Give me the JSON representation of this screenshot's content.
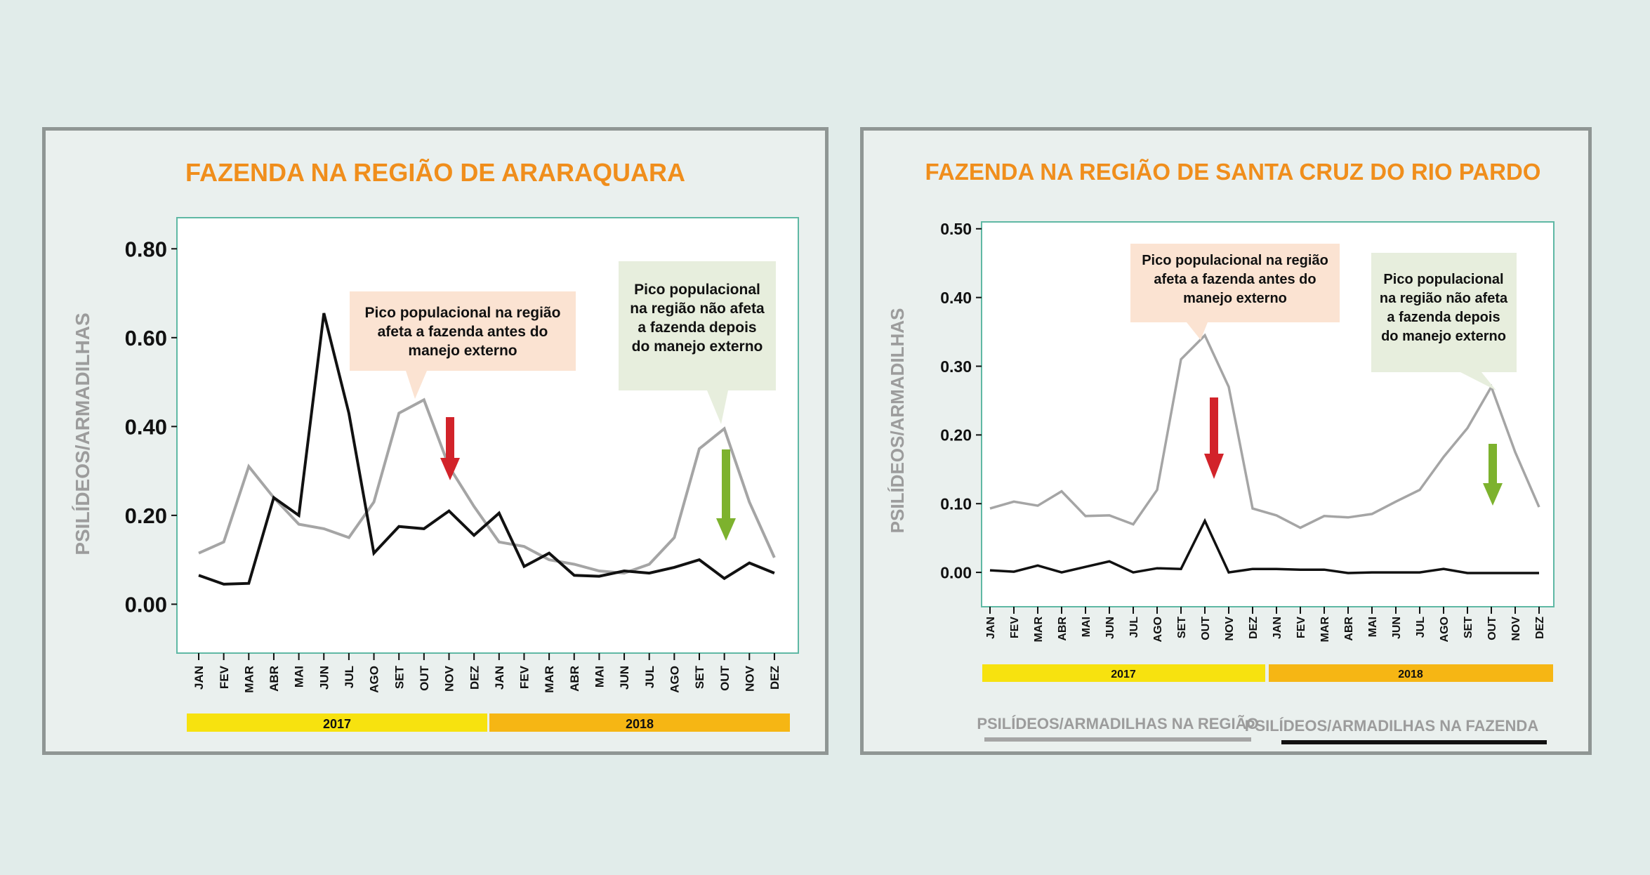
{
  "colors": {
    "page_bg": "#e1ecea",
    "panel_bg": "#eaf0ee",
    "title": "#f08e1c",
    "region_line": "#a5a5a5",
    "farm_line": "#111111",
    "year_2017": "#f7e20f",
    "year_2018": "#f6b614",
    "callout_before": "#fbe3d2",
    "callout_after": "#e7eedd",
    "arrow_before": "#d2232a",
    "arrow_after": "#7db22e",
    "ylabel": "#9c9c9c"
  },
  "legend": {
    "region": "PSILÍDEOS/ARMADILHAS NA REGIÃO",
    "farm": "PSILÍDEOS/ARMADILHAS NA FAZENDA"
  },
  "chart_data": [
    {
      "type": "line",
      "title": "FAZENDA NA REGIÃO DE ARARAQUARA",
      "ylabel": "PSILÍDEOS/ARMADILHAS",
      "xlabel": "",
      "ylim": [
        -0.11,
        0.87
      ],
      "yticks": [
        "0.80",
        "0.60",
        "0.40",
        "0.20",
        "0.00"
      ],
      "ytick_values": [
        0.8,
        0.6,
        0.4,
        0.2,
        0.0
      ],
      "categories": [
        "JAN",
        "FEV",
        "MAR",
        "ABR",
        "MAI",
        "JUN",
        "JUL",
        "AGO",
        "SET",
        "OUT",
        "NOV",
        "DEZ",
        "JAN",
        "FEV",
        "MAR",
        "ABR",
        "MAI",
        "JUN",
        "JUL",
        "AGO",
        "SET",
        "OUT",
        "NOV",
        "DEZ"
      ],
      "years": [
        "2017",
        "2018"
      ],
      "series": [
        {
          "key": "region",
          "values": [
            0.115,
            0.14,
            0.31,
            0.24,
            0.18,
            0.17,
            0.15,
            0.23,
            0.43,
            0.46,
            0.31,
            0.22,
            0.14,
            0.13,
            0.1,
            0.09,
            0.075,
            0.07,
            0.09,
            0.15,
            0.35,
            0.395,
            0.23,
            0.105
          ]
        },
        {
          "key": "farm",
          "values": [
            0.065,
            0.045,
            0.047,
            0.24,
            0.2,
            0.655,
            0.43,
            0.115,
            0.175,
            0.17,
            0.21,
            0.155,
            0.205,
            0.085,
            0.115,
            0.065,
            0.063,
            0.075,
            0.07,
            0.083,
            0.1,
            0.058,
            0.093,
            0.07
          ]
        }
      ],
      "annotations": [
        {
          "text": [
            "Pico populacional na região",
            "afeta a fazenda antes do",
            "manejo externo"
          ]
        },
        {
          "text": [
            "Pico populacional",
            "na região não afeta",
            "a fazenda depois",
            "do manejo externo"
          ]
        }
      ]
    },
    {
      "type": "line",
      "title": "FAZENDA NA REGIÃO DE SANTA CRUZ DO RIO PARDO",
      "ylabel": "PSILÍDEOS/ARMADILHAS",
      "xlabel": "",
      "ylim": [
        -0.05,
        0.51
      ],
      "yticks": [
        "0.50",
        "0.40",
        "0.30",
        "0.20",
        "0.10",
        "0.00"
      ],
      "ytick_values": [
        0.5,
        0.4,
        0.3,
        0.2,
        0.1,
        0.0
      ],
      "categories": [
        "JAN",
        "FEV",
        "MAR",
        "ABR",
        "MAI",
        "JUN",
        "JUL",
        "AGO",
        "SET",
        "OUT",
        "NOV",
        "DEZ",
        "JAN",
        "FEV",
        "MAR",
        "ABR",
        "MAI",
        "JUN",
        "JUL",
        "AGO",
        "SET",
        "OUT",
        "NOV",
        "DEZ"
      ],
      "years": [
        "2017",
        "2018"
      ],
      "series": [
        {
          "key": "region",
          "values": [
            0.093,
            0.103,
            0.097,
            0.118,
            0.082,
            0.083,
            0.07,
            0.12,
            0.31,
            0.345,
            0.27,
            0.093,
            0.083,
            0.065,
            0.082,
            0.08,
            0.085,
            0.103,
            0.12,
            0.168,
            0.21,
            0.27,
            0.175,
            0.095
          ]
        },
        {
          "key": "farm",
          "values": [
            0.003,
            0.001,
            0.01,
            0.0,
            0.008,
            0.016,
            0.0,
            0.006,
            0.005,
            0.075,
            0.0,
            0.005,
            0.005,
            0.004,
            0.004,
            -0.001,
            0.0,
            0.0,
            0.0,
            0.005,
            -0.001,
            -0.001,
            -0.001,
            -0.001
          ]
        }
      ],
      "annotations": [
        {
          "text": [
            "Pico populacional na região",
            "afeta a fazenda antes do",
            "manejo externo"
          ]
        },
        {
          "text": [
            "Pico populacional",
            "na região não afeta",
            "a fazenda depois",
            "do manejo externo"
          ]
        }
      ]
    }
  ]
}
